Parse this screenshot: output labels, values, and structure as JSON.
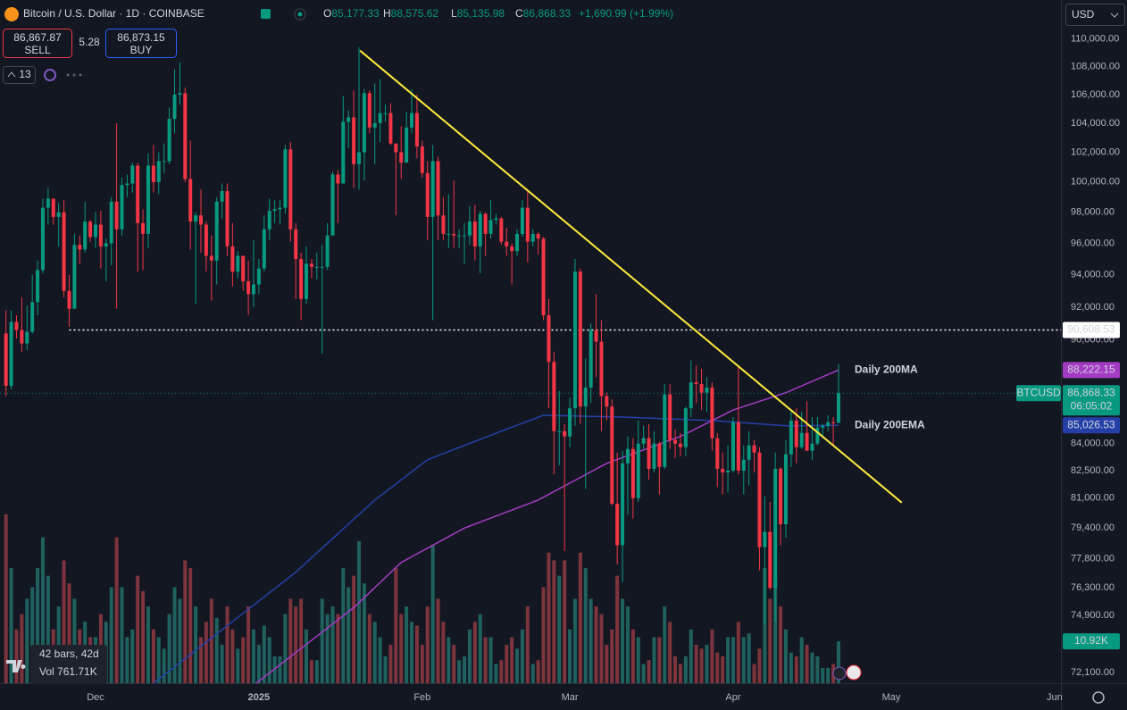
{
  "toolbar": {
    "symbol": "Bitcoin / U.S. Dollar · 1D · COINBASE",
    "ohlc": [
      {
        "key": "O",
        "value": "85,177.33"
      },
      {
        "key": "H",
        "value": "88,575.62"
      },
      {
        "key": "L",
        "value": "85,135.98"
      },
      {
        "key": "C",
        "value": "86,868.33"
      }
    ],
    "change": "+1,690.99 (+1.99%)",
    "sell_price": "86,867.87",
    "sell": "SELL",
    "spread": "5.28",
    "buy_price": "86,873.15",
    "buy": "BUY",
    "interval_count": "13",
    "currency": "USD"
  },
  "measure": {
    "bars": "42 bars, 42d",
    "volume": "Vol 761.71K"
  },
  "chart_data": {
    "type": "candlestick",
    "log": true,
    "grid": false,
    "up_color": "#089981",
    "down_color": "#f23645",
    "xlim": [
      -1.13,
      200.2
    ],
    "xticks": [
      {
        "value": 17,
        "label": "Dec"
      },
      {
        "value": 48,
        "label": "2025"
      },
      {
        "value": 79,
        "label": "Feb"
      },
      {
        "value": 107,
        "label": "Mar"
      },
      {
        "value": 138,
        "label": "Apr"
      },
      {
        "value": 168,
        "label": "May"
      },
      {
        "value": 199,
        "label": "Jun"
      }
    ],
    "ylim": [
      71600,
      112900
    ],
    "yticks": [
      {
        "value": 110000,
        "label": "110,000.00"
      },
      {
        "value": 108000,
        "label": "108,000.00"
      },
      {
        "value": 106000,
        "label": "106,000.00"
      },
      {
        "value": 104000,
        "label": "104,000.00"
      },
      {
        "value": 102000,
        "label": "102,000.00"
      },
      {
        "value": 100000,
        "label": "100,000.00"
      },
      {
        "value": 98000,
        "label": "98,000.00"
      },
      {
        "value": 96000,
        "label": "96,000.00"
      },
      {
        "value": 94000,
        "label": "94,000.00"
      },
      {
        "value": 92000,
        "label": "92,000.00"
      },
      {
        "value": 90000,
        "label": "90,000.00"
      },
      {
        "value": 84000,
        "label": "84,000.00"
      },
      {
        "value": 82500,
        "label": "82,500.00"
      },
      {
        "value": 81000,
        "label": "81,000.00"
      },
      {
        "value": 79400,
        "label": "79,400.00"
      },
      {
        "value": 77800,
        "label": "77,800.00"
      },
      {
        "value": 76300,
        "label": "76,300.00"
      },
      {
        "value": 74900,
        "label": "74,900.00"
      },
      {
        "value": 72100,
        "label": "72,100.00"
      }
    ],
    "ohlc": [
      [
        90400,
        91800,
        86700,
        87300
      ],
      [
        87300,
        91800,
        87100,
        91100
      ],
      [
        91100,
        91500,
        90100,
        90600
      ],
      [
        90600,
        92600,
        89300,
        89800
      ],
      [
        89800,
        92100,
        89400,
        90500
      ],
      [
        90500,
        94000,
        90400,
        92300
      ],
      [
        92300,
        94900,
        91500,
        94300
      ],
      [
        94300,
        98900,
        94100,
        98300
      ],
      [
        98300,
        99600,
        97200,
        98900
      ],
      [
        98900,
        98900,
        97200,
        97700
      ],
      [
        97700,
        98600,
        95800,
        98000
      ],
      [
        98000,
        98800,
        92600,
        93000
      ],
      [
        93000,
        94000,
        90800,
        91900
      ],
      [
        91900,
        96600,
        91900,
        95900
      ],
      [
        95900,
        96500,
        94700,
        95600
      ],
      [
        95600,
        98700,
        95400,
        97400
      ],
      [
        97400,
        97500,
        96100,
        96400
      ],
      [
        96400,
        98000,
        95700,
        97200
      ],
      [
        97200,
        98100,
        94400,
        95800
      ],
      [
        95800,
        96300,
        93600,
        96000
      ],
      [
        96000,
        99000,
        94600,
        98700
      ],
      [
        98700,
        104000,
        91900,
        96900
      ],
      [
        96900,
        100300,
        96500,
        99800
      ],
      [
        99800,
        100500,
        99000,
        99900
      ],
      [
        99900,
        101300,
        99300,
        101100
      ],
      [
        101100,
        101300,
        94200,
        97300
      ],
      [
        97300,
        98200,
        94300,
        96600
      ],
      [
        96600,
        101900,
        95700,
        101100
      ],
      [
        101100,
        102500,
        99300,
        100000
      ],
      [
        100000,
        102000,
        99200,
        101400
      ],
      [
        101400,
        102600,
        100600,
        101400
      ],
      [
        101400,
        105100,
        101200,
        104300
      ],
      [
        104300,
        107800,
        103300,
        106000
      ],
      [
        106000,
        108300,
        105300,
        106100
      ],
      [
        106100,
        106500,
        100000,
        100200
      ],
      [
        100200,
        102800,
        95600,
        97400
      ],
      [
        97400,
        98000,
        92200,
        97800
      ],
      [
        97800,
        99500,
        95400,
        97200
      ],
      [
        97200,
        97400,
        94200,
        95200
      ],
      [
        95200,
        96500,
        92400,
        94900
      ],
      [
        94900,
        99000,
        93400,
        98700
      ],
      [
        98700,
        99900,
        97600,
        99400
      ],
      [
        99400,
        99900,
        95200,
        95800
      ],
      [
        95800,
        97300,
        93300,
        94200
      ],
      [
        94200,
        95500,
        93800,
        95200
      ],
      [
        95200,
        95200,
        93000,
        93600
      ],
      [
        93600,
        94900,
        91500,
        92800
      ],
      [
        92800,
        96200,
        92000,
        93400
      ],
      [
        93400,
        95000,
        92800,
        94400
      ],
      [
        94400,
        97800,
        94200,
        96900
      ],
      [
        96900,
        98900,
        96200,
        98100
      ],
      [
        98100,
        98800,
        97300,
        98200
      ],
      [
        98200,
        98800,
        97200,
        98300
      ],
      [
        98300,
        102500,
        97900,
        102200
      ],
      [
        102200,
        102700,
        96100,
        96900
      ],
      [
        96900,
        97300,
        92500,
        95000
      ],
      [
        95000,
        95400,
        91200,
        92500
      ],
      [
        92500,
        95800,
        92200,
        94700
      ],
      [
        94700,
        95000,
        93800,
        94500
      ],
      [
        94500,
        95400,
        93700,
        94500
      ],
      [
        94500,
        95900,
        89200,
        94500
      ],
      [
        94500,
        97300,
        94300,
        96500
      ],
      [
        96500,
        100700,
        96500,
        100500
      ],
      [
        100500,
        100800,
        97300,
        99900
      ],
      [
        99900,
        105900,
        99900,
        104100
      ],
      [
        104100,
        104900,
        102300,
        104400
      ],
      [
        104400,
        106300,
        99600,
        101200
      ],
      [
        101200,
        109400,
        99500,
        102000
      ],
      [
        102000,
        106400,
        100100,
        106100
      ],
      [
        106100,
        106300,
        103300,
        103700
      ],
      [
        103700,
        106800,
        101200,
        104000
      ],
      [
        104000,
        107100,
        102700,
        104700
      ],
      [
        104700,
        105300,
        104100,
        104700
      ],
      [
        104700,
        105400,
        102500,
        102600
      ],
      [
        102600,
        102600,
        97800,
        102000
      ],
      [
        102000,
        103800,
        100200,
        101300
      ],
      [
        101300,
        104800,
        101300,
        103700
      ],
      [
        103700,
        106400,
        103300,
        104700
      ],
      [
        104700,
        106000,
        101600,
        102400
      ],
      [
        102400,
        102800,
        100300,
        100600
      ],
      [
        100600,
        101400,
        96200,
        97700
      ],
      [
        97700,
        102500,
        91200,
        101400
      ],
      [
        101400,
        101700,
        96200,
        97800
      ],
      [
        97800,
        99000,
        96200,
        96600
      ],
      [
        96600,
        99200,
        95700,
        96600
      ],
      [
        96600,
        100100,
        95700,
        96500
      ],
      [
        96500,
        96900,
        95700,
        96500
      ],
      [
        96500,
        97300,
        94700,
        96500
      ],
      [
        96500,
        98400,
        95900,
        97400
      ],
      [
        97400,
        98500,
        94900,
        95800
      ],
      [
        95800,
        98100,
        94100,
        97900
      ],
      [
        97900,
        98000,
        95200,
        96600
      ],
      [
        96600,
        98800,
        96300,
        97500
      ],
      [
        97500,
        97900,
        97200,
        97600
      ],
      [
        97600,
        97700,
        95900,
        96100
      ],
      [
        96100,
        97000,
        95200,
        95800
      ],
      [
        95800,
        96000,
        93400,
        95500
      ],
      [
        95500,
        96900,
        95200,
        96600
      ],
      [
        96600,
        98800,
        96400,
        98300
      ],
      [
        98300,
        99500,
        94800,
        96100
      ],
      [
        96100,
        96900,
        95800,
        96600
      ],
      [
        96600,
        96700,
        95300,
        96300
      ],
      [
        96300,
        96400,
        91200,
        91500
      ],
      [
        91500,
        92500,
        86000,
        88700
      ],
      [
        88700,
        89300,
        82300,
        84700
      ],
      [
        84700,
        87000,
        82800,
        84700
      ],
      [
        84700,
        85100,
        78200,
        84400
      ],
      [
        84400,
        86600,
        83800,
        86000
      ],
      [
        86000,
        95000,
        85000,
        94200
      ],
      [
        94200,
        94400,
        85100,
        86100
      ],
      [
        86100,
        88900,
        81500,
        87200
      ],
      [
        87200,
        91000,
        86300,
        90600
      ],
      [
        90600,
        92800,
        87800,
        89900
      ],
      [
        89900,
        91200,
        84700,
        86700
      ],
      [
        86700,
        86900,
        85300,
        86100
      ],
      [
        86100,
        86500,
        80600,
        80700
      ],
      [
        80700,
        83500,
        77500,
        78500
      ],
      [
        78500,
        83600,
        76600,
        82900
      ],
      [
        82900,
        84400,
        80100,
        83700
      ],
      [
        83700,
        84300,
        79900,
        81000
      ],
      [
        81000,
        85300,
        80800,
        84000
      ],
      [
        84000,
        85000,
        83700,
        84300
      ],
      [
        84300,
        85100,
        82000,
        82600
      ],
      [
        82600,
        84700,
        82400,
        84000
      ],
      [
        84000,
        84100,
        81200,
        82700
      ],
      [
        82700,
        87400,
        82600,
        86800
      ],
      [
        86800,
        87400,
        83700,
        84200
      ],
      [
        84200,
        84800,
        83200,
        84000
      ],
      [
        84000,
        84600,
        83300,
        83800
      ],
      [
        83800,
        86100,
        83300,
        86000
      ],
      [
        86000,
        88800,
        85500,
        87500
      ],
      [
        87500,
        88500,
        86300,
        87400
      ],
      [
        87400,
        88300,
        85900,
        86900
      ],
      [
        86900,
        87800,
        85800,
        87200
      ],
      [
        87200,
        87500,
        83600,
        84300
      ],
      [
        84300,
        84600,
        81600,
        82600
      ],
      [
        82600,
        83500,
        81200,
        82400
      ],
      [
        82400,
        83900,
        81300,
        82500
      ],
      [
        82500,
        85500,
        82400,
        85200
      ],
      [
        85200,
        88500,
        82300,
        82500
      ],
      [
        82500,
        83900,
        81200,
        83100
      ],
      [
        83100,
        84700,
        81700,
        83900
      ],
      [
        83900,
        84200,
        82400,
        83500
      ],
      [
        83500,
        83800,
        77200,
        78400
      ],
      [
        78400,
        81100,
        74500,
        79200
      ],
      [
        79200,
        80800,
        76200,
        76300
      ],
      [
        76300,
        83500,
        74600,
        82600
      ],
      [
        82600,
        82700,
        78500,
        79600
      ],
      [
        79600,
        84200,
        78900,
        83400
      ],
      [
        83400,
        85900,
        82700,
        85300
      ],
      [
        85300,
        86000,
        82900,
        83800
      ],
      [
        83800,
        85800,
        83700,
        84600
      ],
      [
        84600,
        86400,
        83600,
        83600
      ],
      [
        83600,
        85500,
        83100,
        84000
      ],
      [
        84000,
        85500,
        83900,
        84900
      ],
      [
        84900,
        85100,
        84300,
        85000
      ],
      [
        85000,
        85600,
        84700,
        85200
      ],
      [
        85200,
        85500,
        83900,
        85177.33
      ],
      [
        85177.33,
        88575.62,
        85135.98,
        86868.33
      ]
    ],
    "last_price_label": "86,868.33",
    "countdown": "06:05:02",
    "symbol_tag": "BTCUSD",
    "volume": {
      "ylim": [
        0,
        178000
      ],
      "up_color": "#1f625d",
      "down_color": "#7e343c",
      "last_label": "10.92K",
      "values": [
        44000,
        30000,
        14000,
        18000,
        22000,
        25000,
        30000,
        38000,
        28000,
        14000,
        20000,
        32000,
        26000,
        22000,
        14000,
        16000,
        12000,
        12000,
        18000,
        16000,
        25000,
        38000,
        25000,
        12000,
        14000,
        28000,
        24000,
        20000,
        14000,
        12000,
        9000,
        18000,
        25000,
        22000,
        32000,
        30000,
        20000,
        12000,
        16000,
        22000,
        17000,
        10000,
        20000,
        14000,
        9000,
        12000,
        20000,
        14000,
        10000,
        15000,
        12000,
        7000,
        7000,
        18000,
        22000,
        20000,
        22000,
        14000,
        6000,
        6000,
        22000,
        18000,
        20000,
        18000,
        30000,
        25000,
        28000,
        37000,
        26000,
        18000,
        16000,
        12000,
        7000,
        10000,
        30000,
        18000,
        20000,
        16000,
        15000,
        10000,
        20000,
        36000,
        22000,
        16000,
        12000,
        10000,
        6000,
        7000,
        14000,
        16000,
        18000,
        12000,
        12000,
        5000,
        6000,
        10000,
        12000,
        9000,
        14000,
        20000,
        5000,
        6000,
        25000,
        34000,
        32000,
        28000,
        32000,
        14000,
        22000,
        34000,
        30000,
        22000,
        20000,
        18000,
        10000,
        14000,
        28000,
        22000,
        20000,
        14000,
        12000,
        5000,
        6000,
        12000,
        12000,
        20000,
        16000,
        7000,
        5000,
        7000,
        14000,
        10000,
        9000,
        10000,
        14000,
        8000,
        7000,
        12000,
        12000,
        16000,
        12000,
        13000,
        5000,
        9000,
        30000,
        22000,
        28000,
        20000,
        14000,
        8000,
        7000,
        12000,
        10000,
        8000,
        7000,
        4000,
        4000,
        5000,
        10920
      ]
    },
    "series": [
      {
        "name": "Daily 200MA",
        "color": "#a53bc4",
        "last_label": "88,222.15",
        "x": [
          44,
          48,
          66,
          75,
          87,
          101,
          114,
          128,
          138,
          148,
          158
        ],
        "values": [
          71000,
          71700,
          75300,
          77600,
          79400,
          80900,
          82900,
          84400,
          85900,
          86900,
          88222.15
        ]
      },
      {
        "name": "Daily 200EMA",
        "color": "#2440a8",
        "last_label": "85,026.53",
        "x": [
          26,
          28,
          41,
          55,
          70,
          80,
          94,
          102,
          117,
          134,
          148,
          158
        ],
        "values": [
          70800,
          71600,
          74200,
          77100,
          80900,
          83100,
          84700,
          85600,
          85500,
          85300,
          85000,
          85026.53
        ]
      }
    ],
    "trendline": {
      "x": [
        67.2,
        170
      ],
      "values": [
        109150,
        80760
      ],
      "color": "#ffeb3b"
    },
    "hline": {
      "x": 12,
      "value": 90608.53,
      "label": "90,608.53",
      "color": "#ffffff"
    }
  }
}
